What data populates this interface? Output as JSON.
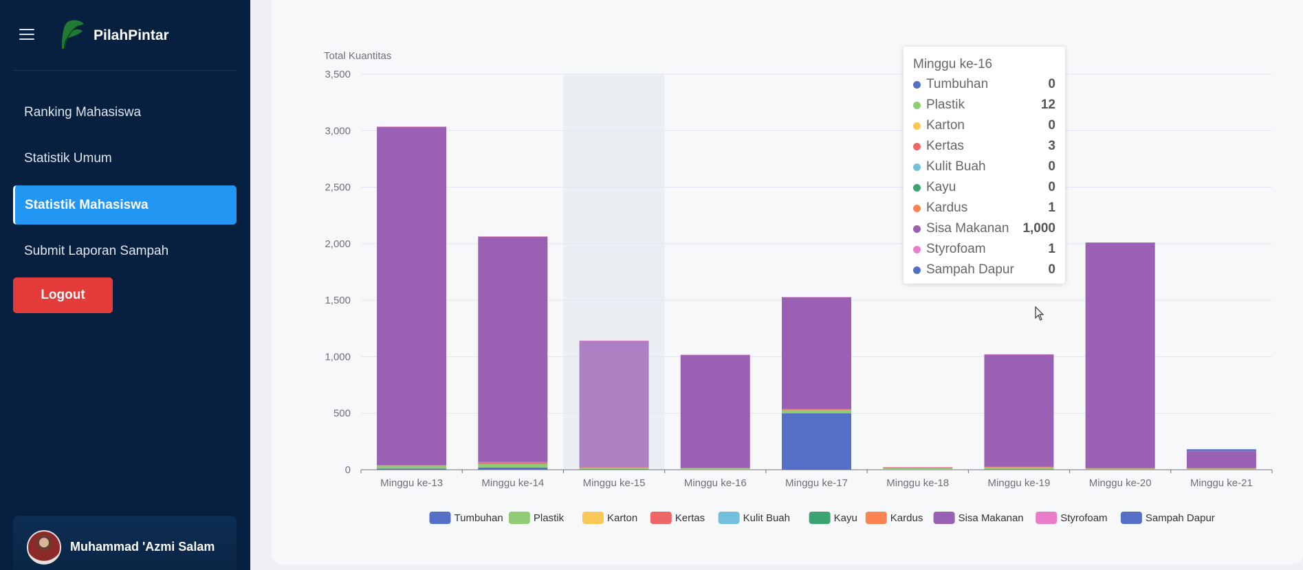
{
  "app": {
    "brand": "PilahPintar",
    "logout_label": "Logout",
    "user_name": "Muhammad 'Azmi Salam"
  },
  "sidebar": {
    "items": [
      {
        "label": "Ranking Mahasiswa"
      },
      {
        "label": "Statistik Umum"
      },
      {
        "label": "Statistik Mahasiswa",
        "active": true
      },
      {
        "label": "Submit Laporan Sampah"
      }
    ]
  },
  "colors": {
    "sidebar_bg": "#07203f",
    "active_nav": "#2196f3",
    "logout": "#e43b3b"
  },
  "tooltip": {
    "title": "Minggu ke-16",
    "rows": [
      {
        "label": "Tumbuhan",
        "value": "0",
        "color": "#5470c6"
      },
      {
        "label": "Plastik",
        "value": "12",
        "color": "#91cc75"
      },
      {
        "label": "Karton",
        "value": "0",
        "color": "#fac858"
      },
      {
        "label": "Kertas",
        "value": "3",
        "color": "#ee6666"
      },
      {
        "label": "Kulit Buah",
        "value": "0",
        "color": "#73c0de"
      },
      {
        "label": "Kayu",
        "value": "0",
        "color": "#3ba272"
      },
      {
        "label": "Kardus",
        "value": "1",
        "color": "#fc8452"
      },
      {
        "label": "Sisa Makanan",
        "value": "1,000",
        "color": "#9a60b4"
      },
      {
        "label": "Styrofoam",
        "value": "1",
        "color": "#ea7ccc"
      },
      {
        "label": "Sampah Dapur",
        "value": "0",
        "color": "#5470c6"
      }
    ]
  },
  "chart_data": {
    "type": "bar",
    "stacked": true,
    "ylabel": "Total Kuantitas",
    "ylim": [
      0,
      3500
    ],
    "yticks": [
      "0",
      "500",
      "1,000",
      "1,500",
      "2,000",
      "2,500",
      "3,000",
      "3,500"
    ],
    "ytick_values": [
      0,
      500,
      1000,
      1500,
      2000,
      2500,
      3000,
      3500
    ],
    "categories": [
      "Minggu ke-13",
      "Minggu ke-14",
      "Minggu ke-15",
      "Minggu ke-16",
      "Minggu ke-17",
      "Minggu ke-18",
      "Minggu ke-19",
      "Minggu ke-20",
      "Minggu ke-21"
    ],
    "highlighted_category": "Minggu ke-15",
    "legend_position": "bottom",
    "grid": true,
    "series": [
      {
        "name": "Tumbuhan",
        "color": "#5470c6",
        "values": [
          10,
          20,
          5,
          0,
          500,
          0,
          5,
          0,
          0
        ]
      },
      {
        "name": "Plastik",
        "color": "#91cc75",
        "values": [
          25,
          30,
          12,
          12,
          30,
          15,
          15,
          10,
          10
        ]
      },
      {
        "name": "Karton",
        "color": "#fac858",
        "values": [
          0,
          0,
          0,
          0,
          0,
          0,
          0,
          0,
          0
        ]
      },
      {
        "name": "Kertas",
        "color": "#ee6666",
        "values": [
          5,
          10,
          3,
          3,
          5,
          5,
          3,
          3,
          3
        ]
      },
      {
        "name": "Kulit Buah",
        "color": "#73c0de",
        "values": [
          0,
          0,
          0,
          0,
          0,
          0,
          0,
          0,
          0
        ]
      },
      {
        "name": "Kayu",
        "color": "#3ba272",
        "values": [
          0,
          5,
          0,
          0,
          0,
          0,
          0,
          0,
          0
        ]
      },
      {
        "name": "Kardus",
        "color": "#fc8452",
        "values": [
          2,
          3,
          1,
          1,
          2,
          2,
          2,
          2,
          2
        ]
      },
      {
        "name": "Sisa Makanan",
        "color": "#9a60b4",
        "values": [
          2993,
          1995,
          1120,
          1000,
          990,
          0,
          995,
          1995,
          150
        ]
      },
      {
        "name": "Styrofoam",
        "color": "#ea7ccc",
        "values": [
          1,
          1,
          1,
          1,
          1,
          1,
          1,
          1,
          1
        ]
      },
      {
        "name": "Sampah Dapur",
        "color": "#5470c6",
        "values": [
          0,
          0,
          0,
          0,
          0,
          0,
          0,
          0,
          15
        ]
      }
    ]
  }
}
